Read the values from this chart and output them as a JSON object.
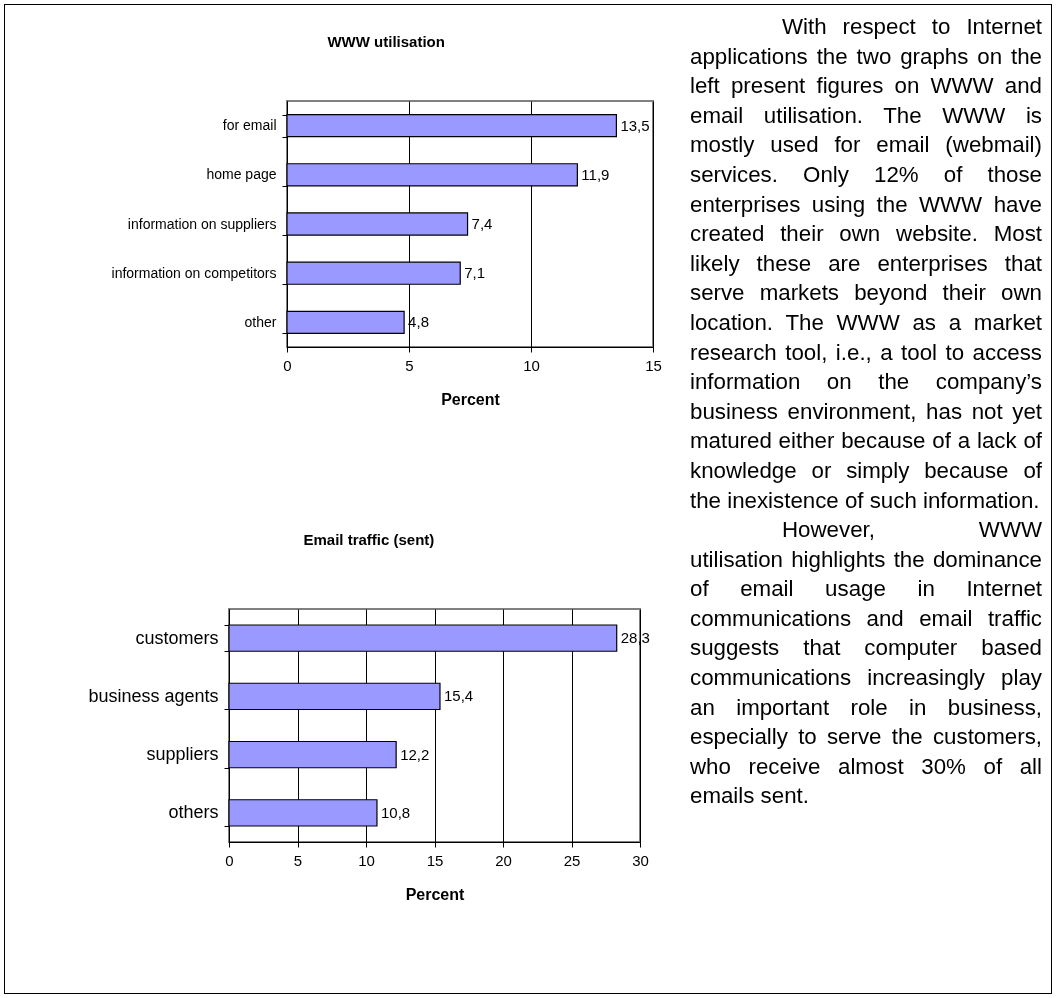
{
  "chart_data": [
    {
      "type": "bar",
      "orientation": "horizontal",
      "title": "WWW utilisation",
      "xlabel": "Percent",
      "categories": [
        "for email",
        "home page",
        "information on suppliers",
        "information on competitors",
        "other"
      ],
      "values": [
        13.5,
        11.9,
        7.4,
        7.1,
        4.8
      ],
      "value_labels": [
        "13,5",
        "11,9",
        "7,4",
        "7,1",
        "4,8"
      ],
      "color": "#9999ff",
      "xlim": [
        0,
        15
      ],
      "xticks": [
        0,
        5,
        10,
        15
      ],
      "grid": "x"
    },
    {
      "type": "bar",
      "orientation": "horizontal",
      "title": "Email traffic (sent)",
      "xlabel": "Percent",
      "categories": [
        "customers",
        "business agents",
        "suppliers",
        "others"
      ],
      "values": [
        28.3,
        15.4,
        12.2,
        10.8
      ],
      "value_labels": [
        "28,3",
        "15,4",
        "12,2",
        "10,8"
      ],
      "color": "#9999ff",
      "xlim": [
        0,
        30
      ],
      "xticks": [
        0,
        5,
        10,
        15,
        20,
        25,
        30
      ],
      "grid": "x"
    },
    {
      "type": "other",
      "annotations": [
        "With respect to Internet applications the two graphs on the left present figures on WWW and email utilisation. The WWW is mostly used for email (webmail) services. Only 12% of those enterprises using the WWW have created their own website. Most likely these are enterprises that serve markets beyond their own location. The WWW as a market research tool, i.e., a tool to access information on the company’s business environment, has not yet matured either because of a lack of knowledge or simply because of the inexistence of such information.",
        "However, WWW utilisation highlights the dominance of email usage in Internet communications and email traffic suggests that computer based communications increasingly play an important role in business, especially to serve the customers, who receive almost 30% of all emails sent."
      ]
    }
  ]
}
